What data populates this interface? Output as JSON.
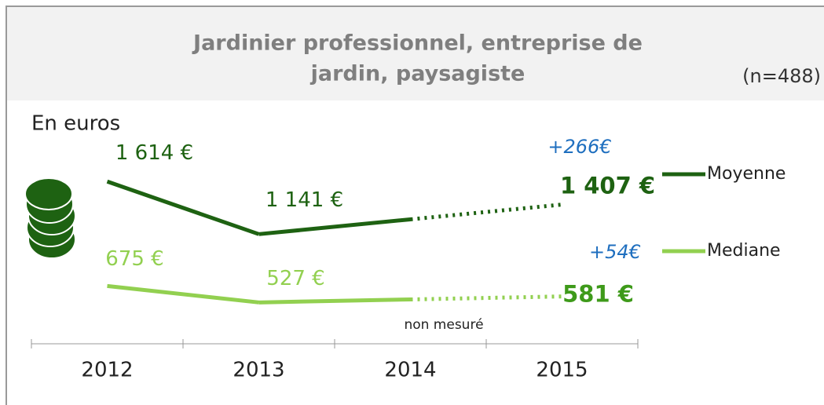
{
  "chart_data": {
    "type": "line",
    "title": "Jardinier professionnel, entreprise de jardin, paysagiste",
    "title_lines": [
      "Jardinier professionnel, entreprise de",
      "jardin, paysagiste"
    ],
    "sample_size": "(n=488)",
    "unit_label": "En euros",
    "categories": [
      "2012",
      "2013",
      "2014",
      "2015"
    ],
    "annotation": "non mesuré",
    "series": [
      {
        "name": "Moyenne",
        "color": "#1e6212",
        "values": [
          1614,
          1141,
          null,
          1407
        ],
        "value_labels": [
          "1 614 €",
          "1 141 €",
          null,
          "1 407 €"
        ],
        "change": "+266€"
      },
      {
        "name": "Mediane",
        "color": "#92d050",
        "values": [
          675,
          527,
          null,
          581
        ],
        "value_labels": [
          "675 €",
          "527 €",
          null,
          "581 €"
        ],
        "change": "+54€"
      }
    ]
  }
}
